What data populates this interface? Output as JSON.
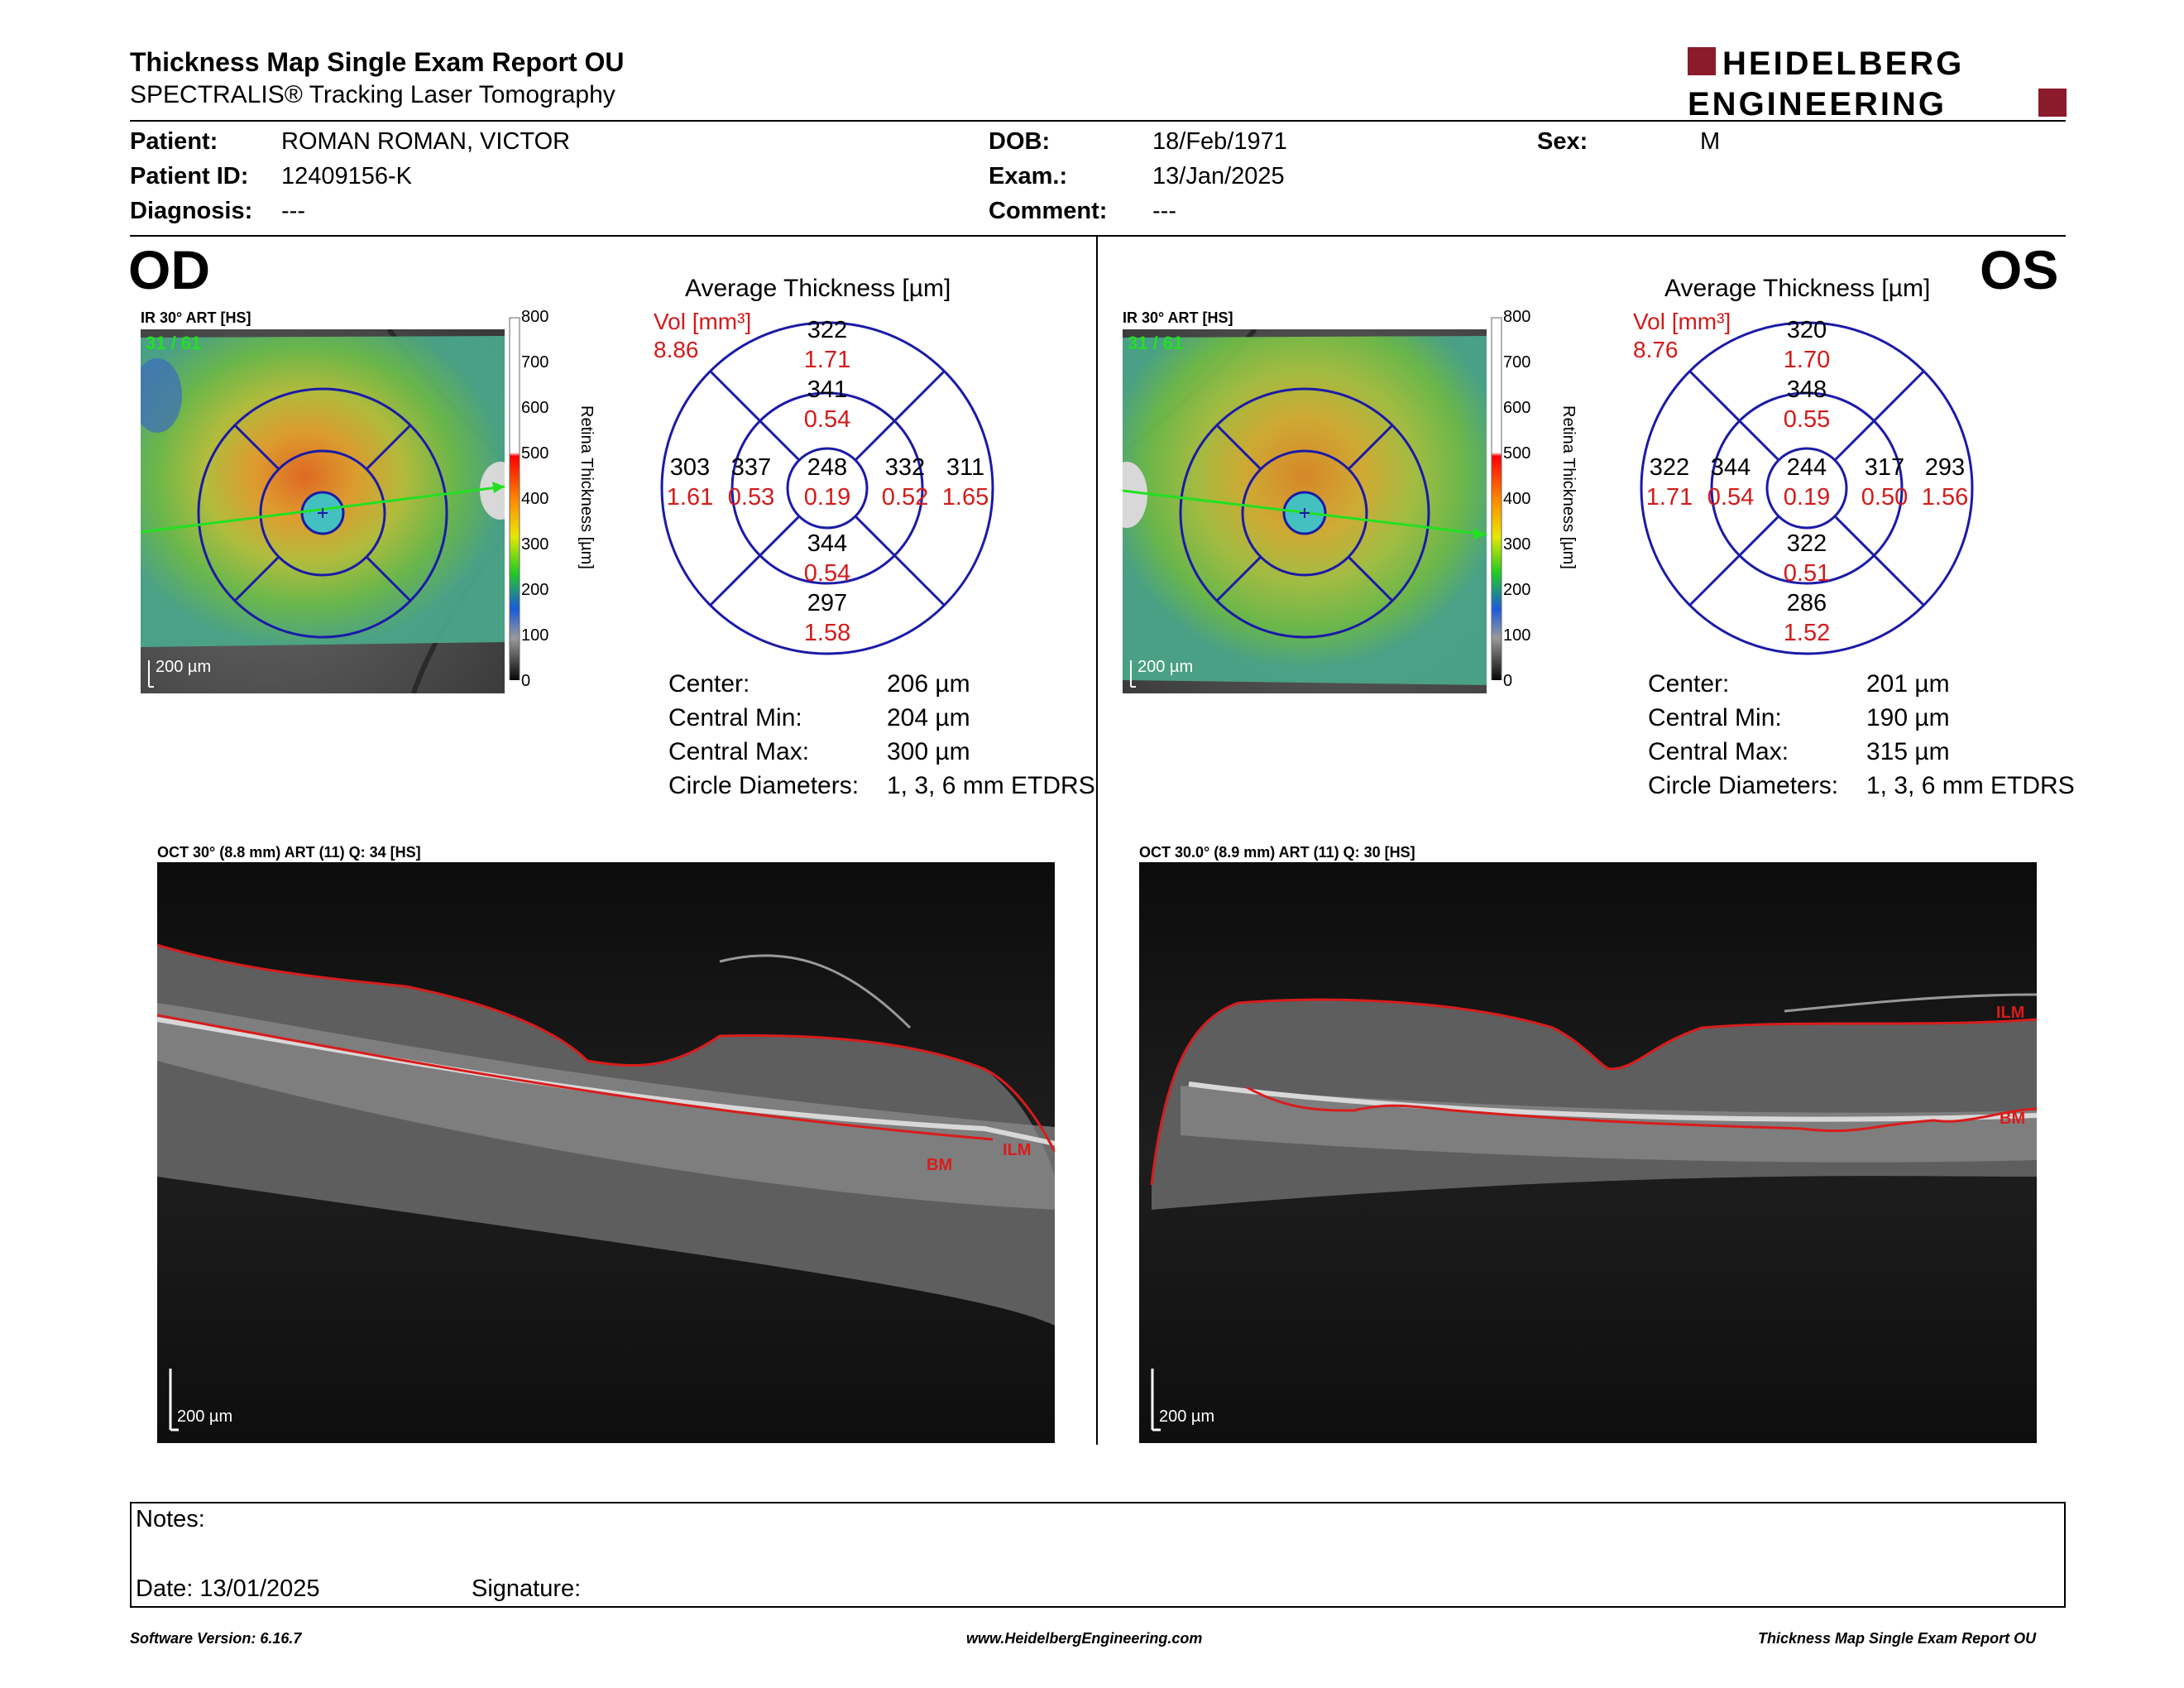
{
  "header": {
    "title": "Thickness Map Single Exam Report OU",
    "subtitle": "SPECTRALIS® Tracking Laser Tomography",
    "logo_top": "HEIDELBERG",
    "logo_bottom": "ENGINEERING",
    "brand_color": "#8b1a2b"
  },
  "patient": {
    "patient_label": "Patient:",
    "patient_value": "ROMAN ROMAN, VICTOR",
    "id_label": "Patient ID:",
    "id_value": "12409156-K",
    "diag_label": "Diagnosis:",
    "diag_value": "---",
    "dob_label": "DOB:",
    "dob_value": "18/Feb/1971",
    "exam_label": "Exam.:",
    "exam_value": "13/Jan/2025",
    "comment_label": "Comment:",
    "comment_value": "---",
    "sex_label": "Sex:",
    "sex_value": "M"
  },
  "od": {
    "eye": "OD",
    "ir_caption": "IR 30° ART [HS]",
    "ir_counter": "31 / 61",
    "ir_scale": "200 µm",
    "colorbar_ticks": [
      "800",
      "700",
      "600",
      "500",
      "400",
      "300",
      "200",
      "100",
      "0"
    ],
    "colorbar_label": "Retina Thickness [µm]",
    "avg_title": "Average Thickness [µm]",
    "vol_label": "Vol [mm³]",
    "vol_total": "8.86",
    "sectors": {
      "outer_sup": {
        "t": "322",
        "v": "1.71"
      },
      "inner_sup": {
        "t": "341",
        "v": "0.54"
      },
      "outer_left": {
        "t": "303",
        "v": "1.61"
      },
      "inner_left": {
        "t": "337",
        "v": "0.53"
      },
      "center": {
        "t": "248",
        "v": "0.19"
      },
      "inner_right": {
        "t": "332",
        "v": "0.52"
      },
      "outer_right": {
        "t": "311",
        "v": "1.65"
      },
      "inner_inf": {
        "t": "344",
        "v": "0.54"
      },
      "outer_inf": {
        "t": "297",
        "v": "1.58"
      }
    },
    "stats": {
      "center_label": "Center:",
      "center_value": "206 µm",
      "min_label": "Central Min:",
      "min_value": "204 µm",
      "max_label": "Central Max:",
      "max_value": "300 µm",
      "diam_label": "Circle Diameters:",
      "diam_value": "1, 3, 6 mm ETDRS"
    },
    "oct_caption": "OCT 30° (8.8 mm) ART (11) Q: 34 [HS]",
    "oct_scale": "200 µm",
    "ilm_label": "ILM",
    "bm_label": "BM"
  },
  "os": {
    "eye": "OS",
    "ir_caption": "IR 30° ART [HS]",
    "ir_counter": "31 / 61",
    "ir_scale": "200 µm",
    "colorbar_ticks": [
      "800",
      "700",
      "600",
      "500",
      "400",
      "300",
      "200",
      "100",
      "0"
    ],
    "colorbar_label": "Retina Thickness [µm]",
    "avg_title": "Average Thickness [µm]",
    "vol_label": "Vol [mm³]",
    "vol_total": "8.76",
    "sectors": {
      "outer_sup": {
        "t": "320",
        "v": "1.70"
      },
      "inner_sup": {
        "t": "348",
        "v": "0.55"
      },
      "outer_left": {
        "t": "322",
        "v": "1.71"
      },
      "inner_left": {
        "t": "344",
        "v": "0.54"
      },
      "center": {
        "t": "244",
        "v": "0.19"
      },
      "inner_right": {
        "t": "317",
        "v": "0.50"
      },
      "outer_right": {
        "t": "293",
        "v": "1.56"
      },
      "inner_inf": {
        "t": "322",
        "v": "0.51"
      },
      "outer_inf": {
        "t": "286",
        "v": "1.52"
      }
    },
    "stats": {
      "center_label": "Center:",
      "center_value": "201 µm",
      "min_label": "Central Min:",
      "min_value": "190 µm",
      "max_label": "Central Max:",
      "max_value": "315 µm",
      "diam_label": "Circle Diameters:",
      "diam_value": "1, 3, 6 mm ETDRS"
    },
    "oct_caption": "OCT 30.0° (8.9 mm) ART (11) Q: 30 [HS]",
    "oct_scale": "200 µm",
    "ilm_label": "ILM",
    "bm_label": "BM"
  },
  "notes": {
    "notes_label": "Notes:",
    "date_label": "Date: 13/01/2025",
    "signature_label": "Signature:"
  },
  "footer": {
    "left": "Software Version: 6.16.7",
    "center": "www.HeidelbergEngineering.com",
    "right": "Thickness Map Single Exam Report OU"
  }
}
